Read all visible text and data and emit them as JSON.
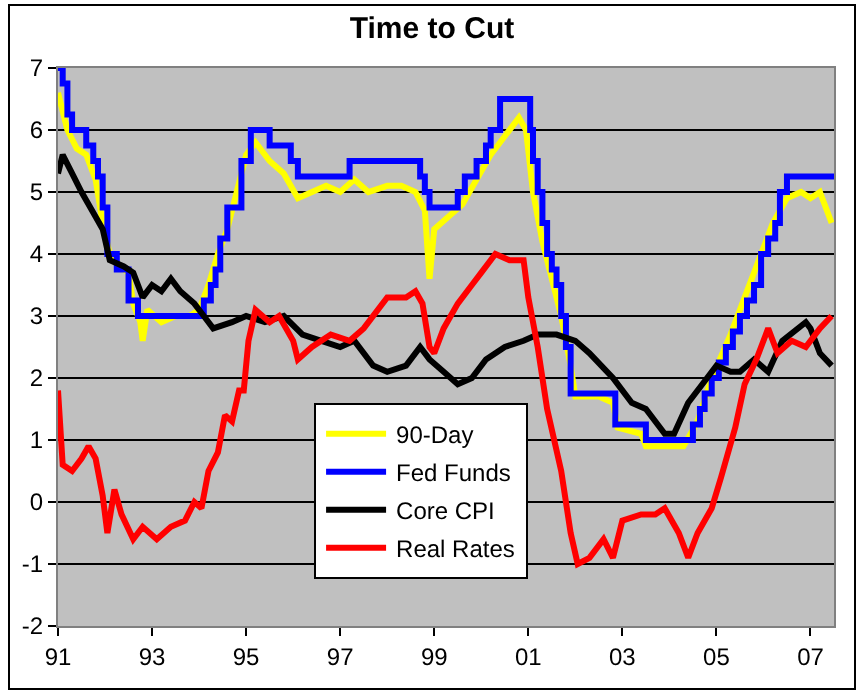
{
  "chart_data": {
    "type": "line",
    "title": "Time to Cut",
    "xlim": [
      1991,
      2007.5
    ],
    "xticks": [
      {
        "value": 1991,
        "label": "91"
      },
      {
        "value": 1993,
        "label": "93"
      },
      {
        "value": 1995,
        "label": "95"
      },
      {
        "value": 1997,
        "label": "97"
      },
      {
        "value": 1999,
        "label": "99"
      },
      {
        "value": 2001,
        "label": "01"
      },
      {
        "value": 2003,
        "label": "03"
      },
      {
        "value": 2005,
        "label": "05"
      },
      {
        "value": 2007,
        "label": "07"
      }
    ],
    "ylim": [
      -2,
      7
    ],
    "yticks": [
      -2,
      -1,
      0,
      1,
      2,
      3,
      4,
      5,
      6,
      7
    ],
    "grid": "y",
    "legend": "bottom",
    "series": [
      {
        "name": "90-Day",
        "color": "#ffff00",
        "x": [
          1991,
          1991.2,
          1991.4,
          1991.6,
          1991.8,
          1991.95,
          1992.1,
          1992.3,
          1992.5,
          1992.6,
          1992.75,
          1992.8,
          1992.9,
          1993.2,
          1993.5,
          1993.8,
          1994,
          1994.2,
          1994.4,
          1994.6,
          1994.8,
          1995,
          1995.2,
          1995.5,
          1995.8,
          1996.1,
          1996.4,
          1996.7,
          1997,
          1997.3,
          1997.6,
          1998,
          1998.3,
          1998.6,
          1998.8,
          1998.9,
          1999,
          1999.3,
          1999.6,
          1999.9,
          2000.2,
          2000.5,
          2000.8,
          2000.95,
          2001.1,
          2001.3,
          2001.5,
          2001.7,
          2001.9,
          2002,
          2002.5,
          2002.8,
          2002.9,
          2003.4,
          2003.5,
          2004.3,
          2004.6,
          2004.9,
          2005.3,
          2005.6,
          2005.9,
          2006.2,
          2006.5,
          2006.8,
          2007,
          2007.2,
          2007.45
        ],
        "values": [
          6.6,
          6,
          5.7,
          5.6,
          5.2,
          4.5,
          4,
          3.8,
          3.7,
          3.2,
          2.9,
          2.6,
          3.1,
          2.9,
          3,
          3,
          3.1,
          3.5,
          4,
          4.4,
          5,
          5.6,
          5.8,
          5.5,
          5.3,
          4.9,
          5,
          5.1,
          5,
          5.2,
          5,
          5.1,
          5.1,
          5,
          4.7,
          3.6,
          4.4,
          4.6,
          4.8,
          5.2,
          5.6,
          5.9,
          6.2,
          6,
          5,
          4.2,
          3.6,
          3,
          2.2,
          1.7,
          1.7,
          1.6,
          1.2,
          1.1,
          0.9,
          0.9,
          1.3,
          2,
          2.7,
          3.3,
          3.9,
          4.5,
          4.9,
          5,
          4.9,
          5,
          4.5
        ]
      },
      {
        "name": "Fed Funds",
        "color": "#0000ff",
        "type": "step",
        "x": [
          1991,
          1991.1,
          1991.2,
          1991.3,
          1991.6,
          1991.75,
          1991.85,
          1991.95,
          1992.05,
          1992.25,
          1992.5,
          1992.7,
          1994.1,
          1994.25,
          1994.35,
          1994.45,
          1994.6,
          1994.9,
          1995.1,
          1995.5,
          1995.95,
          1996.1,
          1997.2,
          1998.7,
          1998.8,
          1998.9,
          1999.5,
          1999.65,
          1999.9,
          2000.1,
          2000.2,
          2000.4,
          2001.04,
          2001.1,
          2001.2,
          2001.3,
          2001.4,
          2001.5,
          2001.6,
          2001.7,
          2001.8,
          2001.9,
          2002.85,
          2003.5,
          2004.5,
          2004.65,
          2004.75,
          2004.9,
          2005.05,
          2005.2,
          2005.35,
          2005.5,
          2005.65,
          2005.8,
          2005.95,
          2006.1,
          2006.25,
          2006.35,
          2006.5,
          2007.5
        ],
        "values": [
          7,
          6.75,
          6.25,
          6,
          5.75,
          5.5,
          5.25,
          4.75,
          4,
          3.75,
          3.25,
          3,
          3.25,
          3.5,
          3.75,
          4.25,
          4.75,
          5.5,
          6,
          5.75,
          5.5,
          5.25,
          5.5,
          5.25,
          5,
          4.75,
          5,
          5.25,
          5.5,
          5.75,
          6,
          6.5,
          6,
          5.5,
          5,
          4.5,
          4,
          3.75,
          3.5,
          3,
          2.5,
          1.75,
          1.25,
          1,
          1.25,
          1.5,
          1.75,
          2,
          2.25,
          2.5,
          2.75,
          3,
          3.25,
          3.5,
          4,
          4.25,
          4.5,
          5,
          5.25,
          5.25
        ]
      },
      {
        "name": "Core CPI",
        "color": "#000000",
        "x": [
          1991,
          1991.1,
          1991.3,
          1991.5,
          1991.8,
          1991.95,
          1992.1,
          1992.4,
          1992.6,
          1992.8,
          1993,
          1993.2,
          1993.4,
          1993.6,
          1993.9,
          1994.1,
          1994.3,
          1994.7,
          1995,
          1995.4,
          1995.8,
          1996.2,
          1996.6,
          1997,
          1997.3,
          1997.7,
          1998,
          1998.4,
          1998.7,
          1998.9,
          1999.2,
          1999.5,
          1999.8,
          2000.1,
          2000.5,
          2000.9,
          2001.2,
          2001.6,
          2002,
          2002.3,
          2002.8,
          2003.2,
          2003.5,
          2003.9,
          2004.1,
          2004.4,
          2004.7,
          2005,
          2005.3,
          2005.5,
          2005.8,
          2006.1,
          2006.4,
          2006.9,
          2007,
          2007.2,
          2007.45
        ],
        "values": [
          5.3,
          5.6,
          5.3,
          5,
          4.6,
          4.4,
          3.9,
          3.8,
          3.7,
          3.3,
          3.5,
          3.4,
          3.6,
          3.4,
          3.2,
          3,
          2.8,
          2.9,
          3,
          2.9,
          3,
          2.7,
          2.6,
          2.5,
          2.6,
          2.2,
          2.1,
          2.2,
          2.5,
          2.3,
          2.1,
          1.9,
          2,
          2.3,
          2.5,
          2.6,
          2.7,
          2.7,
          2.6,
          2.4,
          2,
          1.6,
          1.5,
          1.1,
          1.1,
          1.6,
          1.9,
          2.2,
          2.1,
          2.1,
          2.3,
          2.1,
          2.6,
          2.9,
          2.8,
          2.4,
          2.2
        ]
      },
      {
        "name": "Real Rates",
        "color": "#ff0000",
        "x": [
          1991,
          1991.1,
          1991.3,
          1991.5,
          1991.65,
          1991.8,
          1991.95,
          1992.05,
          1992.2,
          1992.35,
          1992.6,
          1992.8,
          1993.1,
          1993.4,
          1993.7,
          1993.9,
          1994.05,
          1994.2,
          1994.4,
          1994.55,
          1994.7,
          1994.85,
          1994.95,
          1995.05,
          1995.2,
          1995.5,
          1995.7,
          1996,
          1996.1,
          1996.4,
          1996.8,
          1997.2,
          1997.5,
          1998,
          1998.4,
          1998.6,
          1998.75,
          1998.9,
          1999,
          1999.2,
          1999.5,
          1999.8,
          2000,
          2000.3,
          2000.6,
          2000.9,
          2001,
          2001.2,
          2001.4,
          2001.7,
          2001.9,
          2002.05,
          2002.3,
          2002.6,
          2002.8,
          2003,
          2003.4,
          2003.7,
          2003.9,
          2004.2,
          2004.4,
          2004.6,
          2004.9,
          2005.1,
          2005.4,
          2005.6,
          2005.85,
          2006.1,
          2006.3,
          2006.6,
          2006.9,
          2007.2,
          2007.45
        ],
        "values": [
          1.8,
          0.6,
          0.5,
          0.7,
          0.9,
          0.7,
          0.1,
          -0.5,
          0.2,
          -0.2,
          -0.6,
          -0.4,
          -0.6,
          -0.4,
          -0.3,
          0,
          -0.1,
          0.5,
          0.8,
          1.4,
          1.3,
          1.8,
          1.8,
          2.6,
          3.1,
          2.9,
          3,
          2.6,
          2.3,
          2.5,
          2.7,
          2.6,
          2.8,
          3.3,
          3.3,
          3.4,
          3.2,
          2.5,
          2.4,
          2.8,
          3.2,
          3.5,
          3.7,
          4,
          3.9,
          3.9,
          3.3,
          2.5,
          1.5,
          0.5,
          -0.5,
          -1,
          -0.9,
          -0.6,
          -0.9,
          -0.3,
          -0.2,
          -0.2,
          -0.1,
          -0.5,
          -0.9,
          -0.5,
          -0.1,
          0.4,
          1.2,
          1.9,
          2.3,
          2.8,
          2.4,
          2.6,
          2.5,
          2.8,
          3
        ]
      }
    ]
  }
}
